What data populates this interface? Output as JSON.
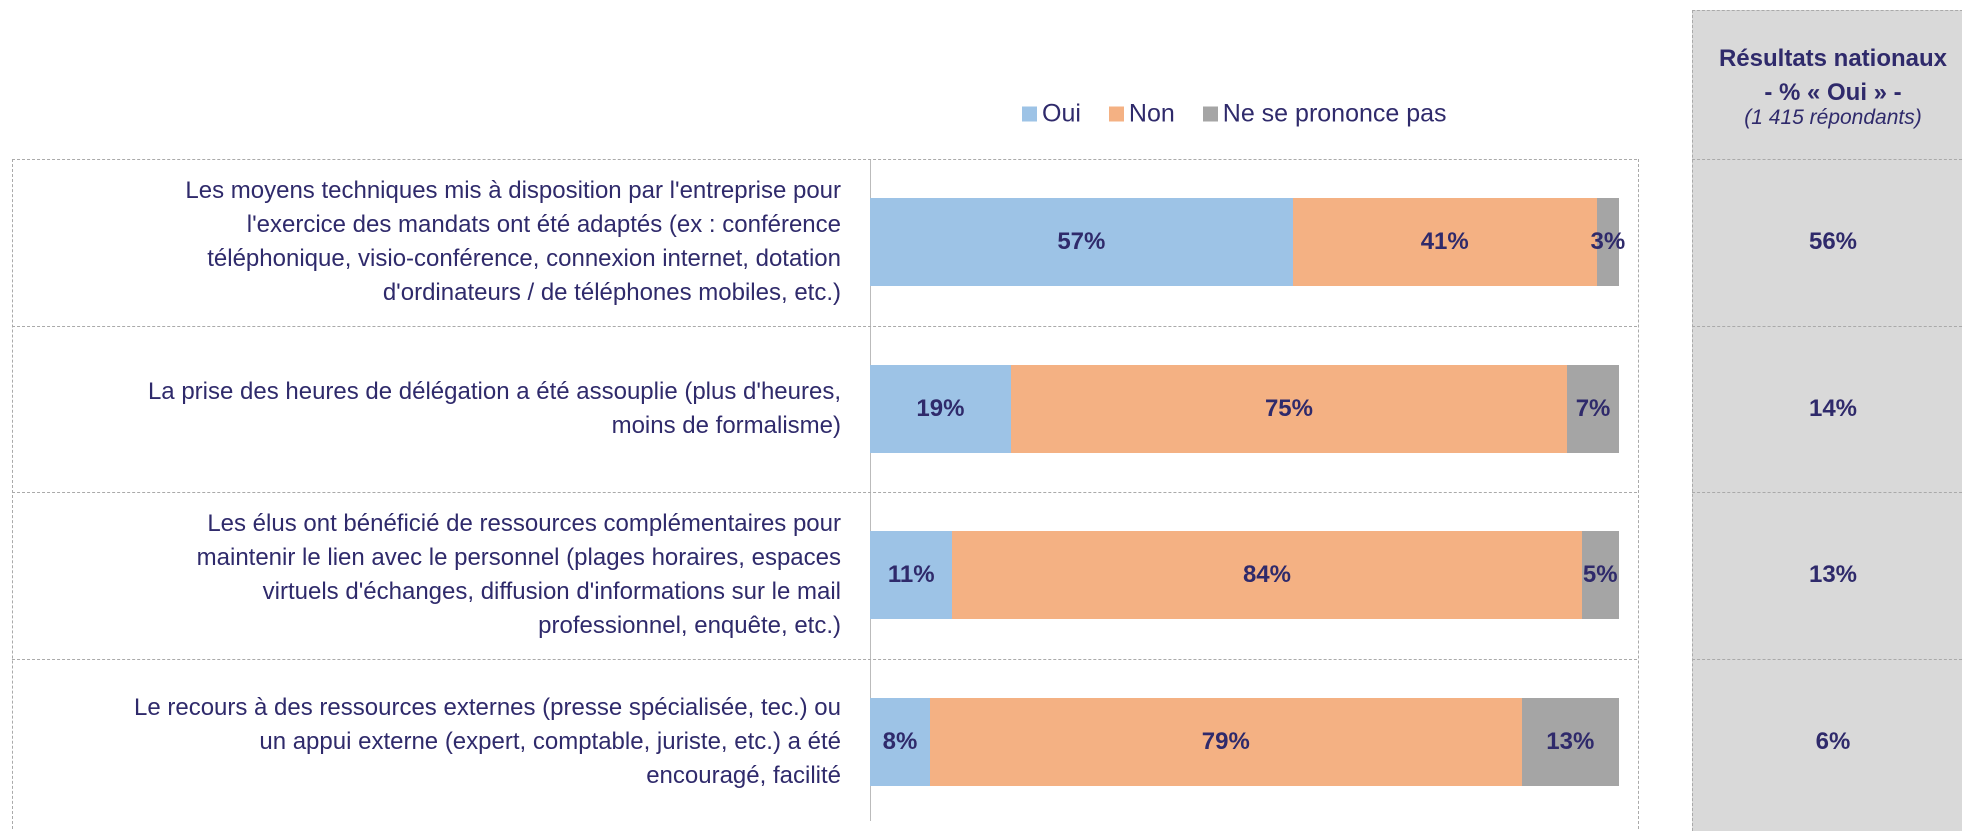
{
  "chart_data": {
    "type": "bar",
    "orientation": "horizontal",
    "stacked": true,
    "legend": "top",
    "categories": [
      "Les moyens techniques mis à disposition par l'entreprise pour\nl'exercice des mandats ont été adaptés (ex : conférence\ntéléphonique, visio-conférence, connexion internet, dotation\nd'ordinateurs / de téléphones mobiles, etc.)",
      "La prise des heures de délégation a été assouplie (plus d'heures,\nmoins de formalisme)",
      "Les élus ont bénéficié de ressources complémentaires pour\nmaintenir le lien avec le personnel (plages horaires, espaces\nvirtuels d'échanges, diffusion d'informations sur le mail\nprofessionnel, enquête, etc.)",
      "Le recours à des ressources externes (presse spécialisée, tec.) ou\nun appui externe (expert, comptable, juriste, etc.) a été\nencouragé, facilité"
    ],
    "series": [
      {
        "name": "Oui",
        "color": "#9dc3e6",
        "values": [
          57,
          19,
          11,
          8
        ],
        "value_labels": [
          "57%",
          "19%",
          "11%",
          "8%"
        ]
      },
      {
        "name": "Non",
        "color": "#f4b183",
        "values": [
          41,
          75,
          84,
          79
        ],
        "value_labels": [
          "41%",
          "75%",
          "84%",
          "79%"
        ]
      },
      {
        "name": "Ne se prononce pas",
        "color": "#a5a5a5",
        "values": [
          3,
          7,
          5,
          13
        ],
        "value_labels": [
          "3%",
          "7%",
          "5%",
          "13%"
        ]
      }
    ],
    "national_results": {
      "title": "Résultats nationaux\n- % « Oui » -",
      "subtitle": "(1 415 répondants)",
      "values": [
        56,
        14,
        13,
        6
      ],
      "value_labels": [
        "56%",
        "14%",
        "13%",
        "6%"
      ]
    }
  }
}
